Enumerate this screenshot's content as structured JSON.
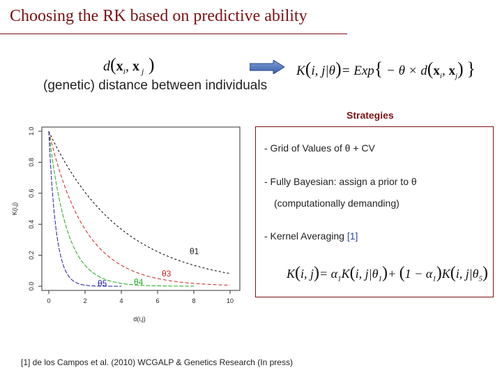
{
  "slide": {
    "title": "Choosing the RK based on predictive ability"
  },
  "header": {
    "distance_formula": "d(x_i, x_j)",
    "distance_caption": "(genetic) distance between individuals",
    "kernel_formula": "K(i, j|θ) = Exp{ −θ × d(x_i, x_j) }"
  },
  "strategies": {
    "heading": "Strategies",
    "items": [
      {
        "text": "- Grid of Values of  θ  + CV"
      },
      {
        "text": "-  Fully Bayesian: assign a prior to θ"
      },
      {
        "text": "(computationally demanding)"
      },
      {
        "text": "-  Kernel Averaging ",
        "ref": "[1]"
      }
    ],
    "averaging_formula": "K(i, j) = α1 K(i, j|θ1) + (1 − α1) K(i, j|θ5)"
  },
  "footnote": "[1] de los Campos et al. (2010) WCGALP & Genetics Research (In press)",
  "chart_data": {
    "type": "line",
    "xlabel": "d(i,j)",
    "ylabel": "K(i,j)",
    "xlim": [
      0,
      10
    ],
    "ylim": [
      0,
      1
    ],
    "x_ticks": [
      "0",
      "2",
      "4",
      "6",
      "8",
      "10"
    ],
    "y_ticks": [
      "0.0",
      "0.2",
      "0.4",
      "0.6",
      "0.8",
      "1.0"
    ],
    "curve_labels": [
      "θ1",
      "θ3",
      "θ4",
      "θ5"
    ],
    "series": [
      {
        "label": "θ1",
        "theta": 0.25,
        "x_max": 10,
        "color": "#000000",
        "dash": "3,3"
      },
      {
        "label": "θ3",
        "theta": 0.5,
        "x_max": 10,
        "color": "#cc2222",
        "dash": "5,3"
      },
      {
        "label": "θ4",
        "theta": 1.0,
        "x_max": 8,
        "color": "#22aa22",
        "dash": "6,2"
      },
      {
        "label": "θ5",
        "theta": 2.5,
        "x_max": 4,
        "color": "#1c1ca0",
        "dash": "6,2"
      }
    ]
  }
}
